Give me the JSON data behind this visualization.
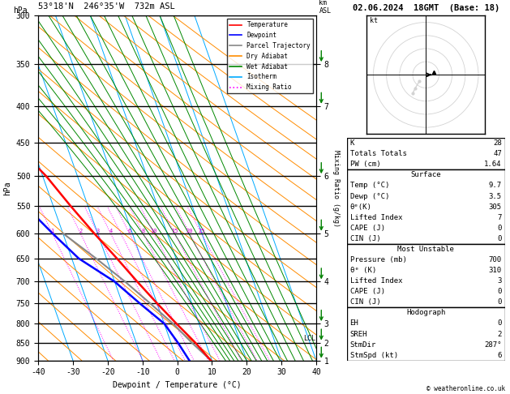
{
  "title_left": "53°18'N  246°35'W  732m ASL",
  "title_right": "02.06.2024  18GMT  (Base: 18)",
  "xlabel": "Dewpoint / Temperature (°C)",
  "ylabel_left": "hPa",
  "pressure_ticks": [
    300,
    350,
    400,
    450,
    500,
    550,
    600,
    650,
    700,
    750,
    800,
    850,
    900
  ],
  "temp_range": [
    -40,
    40
  ],
  "km_ticks": [
    1,
    2,
    3,
    4,
    5,
    6,
    7,
    8
  ],
  "km_pressures": [
    900,
    850,
    800,
    700,
    600,
    500,
    400,
    350
  ],
  "legend_items": [
    {
      "label": "Temperature",
      "color": "#ff0000",
      "ls": "-"
    },
    {
      "label": "Dewpoint",
      "color": "#0000ff",
      "ls": "-"
    },
    {
      "label": "Parcel Trajectory",
      "color": "#888888",
      "ls": "-"
    },
    {
      "label": "Dry Adiabat",
      "color": "#ff8c00",
      "ls": "-"
    },
    {
      "label": "Wet Adiabat",
      "color": "#008800",
      "ls": "-"
    },
    {
      "label": "Isotherm",
      "color": "#00aaff",
      "ls": "-"
    },
    {
      "label": "Mixing Ratio",
      "color": "#ff00ff",
      "ls": ":"
    }
  ],
  "temp_profile": {
    "pressure": [
      900,
      850,
      800,
      750,
      700,
      650,
      600,
      550,
      500,
      450,
      400,
      350,
      300
    ],
    "temp": [
      9.7,
      7.0,
      3.5,
      0.0,
      -3.5,
      -7.0,
      -11.0,
      -15.0,
      -19.0,
      -25.0,
      -32.0,
      -42.0,
      -52.0
    ]
  },
  "dewp_profile": {
    "pressure": [
      900,
      850,
      800,
      750,
      700,
      650,
      600,
      550,
      500,
      450,
      400,
      350,
      300
    ],
    "dewp": [
      3.5,
      2.0,
      0.0,
      -5.0,
      -10.0,
      -18.0,
      -23.0,
      -28.0,
      -32.0,
      -38.0,
      -43.0,
      -51.0,
      -60.0
    ]
  },
  "parcel_profile": {
    "pressure": [
      900,
      850,
      800,
      750,
      700,
      650,
      600
    ],
    "temp": [
      9.7,
      6.0,
      2.5,
      -2.0,
      -7.0,
      -13.0,
      -20.0
    ]
  },
  "lcl_pressure": 840,
  "surface_temp": 9.7,
  "surface_dewp": 3.5,
  "surface_theta_e": 305,
  "lifted_index_sfc": 7,
  "cape_sfc": 0,
  "cin_sfc": 0,
  "K": 28,
  "TT": 47,
  "PW": "1.64",
  "mu_pressure": 700,
  "mu_theta_e": 310,
  "mu_lifted_index": 3,
  "mu_cape": 0,
  "mu_cin": 0,
  "hodo_EH": 0,
  "hodo_SREH": 2,
  "hodo_StmDir": "287°",
  "hodo_StmSpd": 6,
  "isotherm_color": "#00aaff",
  "dry_adiabat_color": "#ff8c00",
  "wet_adiabat_color": "#008800",
  "mixing_ratio_color": "#ff00ff",
  "temp_color": "#ff0000",
  "dewp_color": "#0000ff",
  "parcel_color": "#888888"
}
